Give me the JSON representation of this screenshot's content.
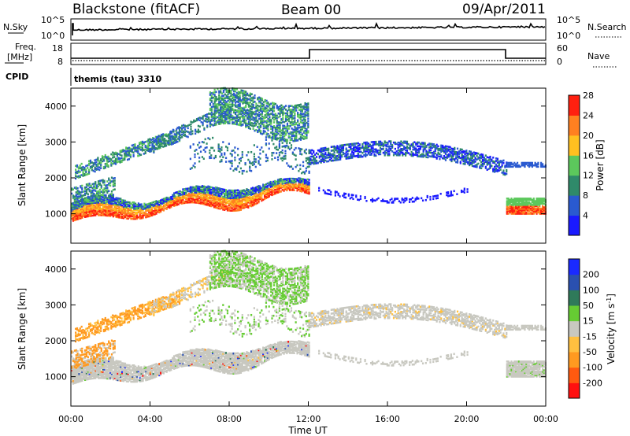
{
  "header": {
    "station": "Blackstone (fitACF)",
    "beam": "Beam 00",
    "date": "09/Apr/2011"
  },
  "top_panels": {
    "nsky_label": "N.Sky",
    "nsky_ticks": [
      "10^5",
      "10^0"
    ],
    "nsearch_label": "N.Search",
    "nsearch_ticks": [
      "10^5",
      "10^0"
    ],
    "freq_label_1": "Freq.",
    "freq_label_2": "[MHz]",
    "freq_ticks": [
      "18",
      "8"
    ],
    "nave_label": "Nave",
    "nave_ticks": [
      "60",
      "0"
    ],
    "cpid_label": "CPID",
    "cpid_value": "themis (tau) 3310"
  },
  "x_axis": {
    "label": "Time UT",
    "ticks": [
      "00:00",
      "04:00",
      "08:00",
      "12:00",
      "16:00",
      "20:00",
      "00:00"
    ]
  },
  "colorbars": {
    "power": {
      "label": "Power [dB]",
      "ticks": [
        "4",
        "8",
        "12",
        "16",
        "20",
        "24",
        "28"
      ],
      "colors": [
        "#1a1aff",
        "#2a5ad0",
        "#2f8a6a",
        "#5cc85c",
        "#ffc020",
        "#ff8020",
        "#ff2010"
      ]
    },
    "velocity": {
      "label": "Velocity [m s",
      "label_sup": "-1",
      "label_end": "]",
      "ticks": [
        "-200",
        "-100",
        "-50",
        "-15",
        "15",
        "50",
        "100",
        "200"
      ],
      "colors": [
        "#ff1010",
        "#ff5a10",
        "#ff9a20",
        "#ffc040",
        "#c8c8c0",
        "#66cc33",
        "#2f7a5a",
        "#2a50b0",
        "#1a2aff"
      ]
    }
  },
  "chart_data": [
    {
      "type": "heatmap",
      "name": "Power",
      "ylabel": "Slant Range [km]",
      "xlim_hours": [
        0,
        24
      ],
      "ylim": [
        180,
        4500
      ],
      "yticks": [
        "1000",
        "2000",
        "3000",
        "4000"
      ],
      "dominant_echo_bands": [
        {
          "t_start": 0.0,
          "t_end": 12.0,
          "range_start_km": 900,
          "range_end_km": 2000,
          "peak_power_db": 28
        },
        {
          "t_start": 0.0,
          "t_end": 12.0,
          "range_start_km": 1800,
          "range_end_km": 4400,
          "peak_power_db": 14
        },
        {
          "t_start": 12.0,
          "t_end": 22.0,
          "range_start_km": 1900,
          "range_end_km": 3200,
          "peak_power_db": 10
        },
        {
          "t_start": 22.0,
          "t_end": 24.0,
          "range_start_km": 1000,
          "range_end_km": 1500,
          "peak_power_db": 26
        }
      ]
    },
    {
      "type": "heatmap",
      "name": "Velocity",
      "ylabel": "Slant Range [km]",
      "xlim_hours": [
        0,
        24
      ],
      "ylim": [
        180,
        4500
      ],
      "yticks": [
        "1000",
        "2000",
        "3000",
        "4000"
      ],
      "dominant_echo_bands": [
        {
          "t_start": 0.0,
          "t_end": 12.0,
          "range_start_km": 900,
          "range_end_km": 2000,
          "velocity_ms": 0
        },
        {
          "t_start": 0.0,
          "t_end": 5.0,
          "range_start_km": 1800,
          "range_end_km": 3500,
          "velocity_ms": -60
        },
        {
          "t_start": 8.0,
          "t_end": 12.0,
          "range_start_km": 2200,
          "range_end_km": 4400,
          "velocity_ms": 40
        },
        {
          "t_start": 12.0,
          "t_end": 24.0,
          "range_start_km": 1000,
          "range_end_km": 3200,
          "velocity_ms": 0
        }
      ]
    }
  ]
}
